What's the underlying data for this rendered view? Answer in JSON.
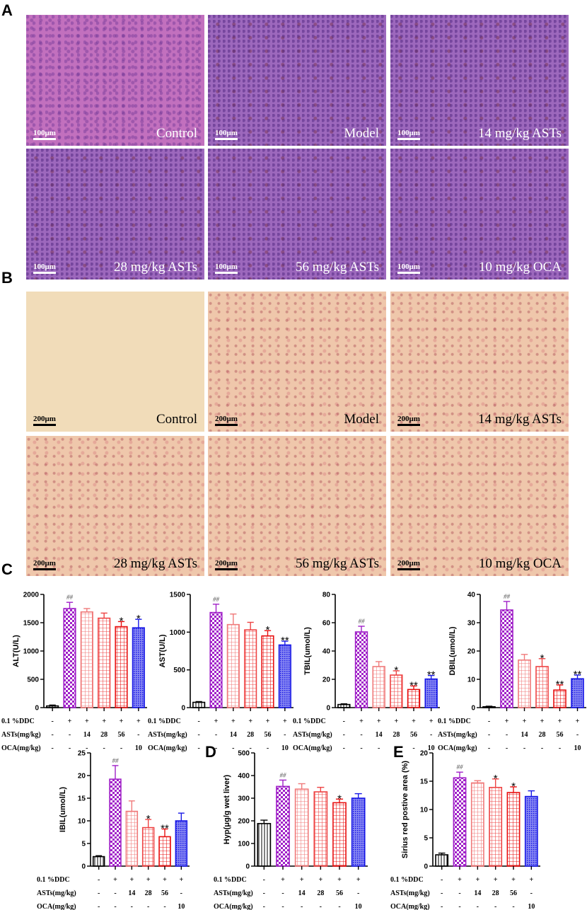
{
  "panels": {
    "A": {
      "letter": "A",
      "scale_bar": "100μm",
      "images": [
        {
          "caption": "Control"
        },
        {
          "caption": "Model"
        },
        {
          "caption": "14 mg/kg ASTs"
        },
        {
          "caption": "28 mg/kg ASTs"
        },
        {
          "caption": "56 mg/kg ASTs"
        },
        {
          "caption": "10 mg/kg OCA"
        }
      ]
    },
    "B": {
      "letter": "B",
      "scale_bar": "200μm",
      "images": [
        {
          "caption": "Control"
        },
        {
          "caption": "Model"
        },
        {
          "caption": "14 mg/kg ASTs"
        },
        {
          "caption": "28 mg/kg ASTs"
        },
        {
          "caption": "56 mg/kg ASTs"
        },
        {
          "caption": "10 mg/kg OCA"
        }
      ]
    },
    "C": {
      "letter": "C"
    },
    "D": {
      "letter": "D"
    },
    "E": {
      "letter": "E"
    }
  },
  "conditions": {
    "rows": [
      {
        "label": "0.1 %DDC",
        "values": [
          "-",
          "+",
          "+",
          "+",
          "+",
          "+"
        ]
      },
      {
        "label": "ASTs(mg/kg)",
        "values": [
          "-",
          "-",
          "14",
          "28",
          "56",
          "-"
        ]
      },
      {
        "label": "OCA(mg/kg)",
        "values": [
          "-",
          "-",
          "-",
          "-",
          "-",
          "10"
        ]
      }
    ]
  },
  "group_colors": [
    "#000000",
    "#a020c8",
    "#f07a7a",
    "#ee4444",
    "#e81010",
    "#1a1ae6"
  ],
  "chart_data": [
    {
      "panel": "C",
      "type": "bar",
      "title": "",
      "ylabel": "ALT(U/L)",
      "ylim": [
        0,
        2000
      ],
      "yticks": [
        0,
        500,
        1000,
        1500,
        2000
      ],
      "categories": [
        "Control",
        "Model",
        "14 mg/kg ASTs",
        "28 mg/kg ASTs",
        "56 mg/kg ASTs",
        "10 mg/kg OCA"
      ],
      "values": [
        30,
        1750,
        1690,
        1580,
        1430,
        1410
      ],
      "errors": [
        15,
        110,
        60,
        90,
        90,
        150
      ],
      "annotations": [
        "",
        "##",
        "",
        "",
        "*",
        "*"
      ]
    },
    {
      "panel": "C",
      "type": "bar",
      "title": "",
      "ylabel": "AST(U/L)",
      "ylim": [
        0,
        1500
      ],
      "yticks": [
        0,
        500,
        1000,
        1500
      ],
      "categories": [
        "Control",
        "Model",
        "14 mg/kg ASTs",
        "28 mg/kg ASTs",
        "56 mg/kg ASTs",
        "10 mg/kg OCA"
      ],
      "values": [
        70,
        1260,
        1100,
        1030,
        950,
        830
      ],
      "errors": [
        10,
        110,
        140,
        100,
        70,
        50
      ],
      "annotations": [
        "",
        "##",
        "",
        "",
        "*",
        "**"
      ]
    },
    {
      "panel": "C",
      "type": "bar",
      "title": "",
      "ylabel": "TBIL(umol/L)",
      "ylim": [
        0,
        80
      ],
      "yticks": [
        0,
        20,
        40,
        60,
        80
      ],
      "categories": [
        "Control",
        "Model",
        "14 mg/kg ASTs",
        "28 mg/kg ASTs",
        "56 mg/kg ASTs",
        "10 mg/kg OCA"
      ],
      "values": [
        2.2,
        53.5,
        29,
        23,
        12.8,
        20.2
      ],
      "errors": [
        0.5,
        4,
        3.5,
        3,
        2.5,
        2.5
      ],
      "annotations": [
        "",
        "##",
        "",
        "*",
        "**",
        "**"
      ]
    },
    {
      "panel": "C",
      "type": "bar",
      "title": "",
      "ylabel": "DBIL(umol/L)",
      "ylim": [
        0,
        40
      ],
      "yticks": [
        0,
        10,
        20,
        30,
        40
      ],
      "categories": [
        "Control",
        "Model",
        "14 mg/kg ASTs",
        "28 mg/kg ASTs",
        "56 mg/kg ASTs",
        "10 mg/kg OCA"
      ],
      "values": [
        0.3,
        34.5,
        16.8,
        14.5,
        6.2,
        10.2
      ],
      "errors": [
        0.2,
        3,
        2,
        2.8,
        1.8,
        1.3
      ],
      "annotations": [
        "",
        "##",
        "",
        "*",
        "**",
        "**"
      ]
    },
    {
      "panel": "C",
      "type": "bar",
      "title": "",
      "ylabel": "IBIL(umol/L)",
      "ylim": [
        0,
        25
      ],
      "yticks": [
        0,
        5,
        10,
        15,
        20,
        25
      ],
      "categories": [
        "Control",
        "Model",
        "14 mg/kg ASTs",
        "28 mg/kg ASTs",
        "56 mg/kg ASTs",
        "10 mg/kg OCA"
      ],
      "values": [
        2.1,
        19.2,
        12.1,
        8.5,
        6.5,
        10.0
      ],
      "errors": [
        0.2,
        3.0,
        2.3,
        1.8,
        1.7,
        1.7
      ],
      "annotations": [
        "",
        "##",
        "",
        "*",
        "**",
        ""
      ]
    },
    {
      "panel": "D",
      "type": "bar",
      "title": "",
      "ylabel": "Hyp(μg/g wet liver)",
      "ylim": [
        0,
        500
      ],
      "yticks": [
        0,
        100,
        200,
        300,
        400,
        500
      ],
      "categories": [
        "Control",
        "Model",
        "14 mg/kg ASTs",
        "28 mg/kg ASTs",
        "56 mg/kg ASTs",
        "10 mg/kg OCA"
      ],
      "values": [
        188,
        352,
        340,
        328,
        280,
        300
      ],
      "errors": [
        15,
        28,
        24,
        20,
        16,
        20
      ],
      "annotations": [
        "",
        "##",
        "",
        "",
        "*",
        ""
      ]
    },
    {
      "panel": "E",
      "type": "bar",
      "title": "",
      "ylabel": "Sirius red postive area (%)",
      "ylim": [
        0,
        20
      ],
      "yticks": [
        0,
        5,
        10,
        15,
        20
      ],
      "categories": [
        "Control",
        "Model",
        "14 mg/kg ASTs",
        "28 mg/kg ASTs",
        "56 mg/kg ASTs",
        "10 mg/kg OCA"
      ],
      "values": [
        2.0,
        15.6,
        14.7,
        13.9,
        13.0,
        12.3
      ],
      "errors": [
        0.3,
        1.0,
        0.4,
        1.5,
        1.0,
        1.0
      ],
      "annotations": [
        "",
        "##",
        "",
        "*",
        "*",
        ""
      ]
    }
  ]
}
